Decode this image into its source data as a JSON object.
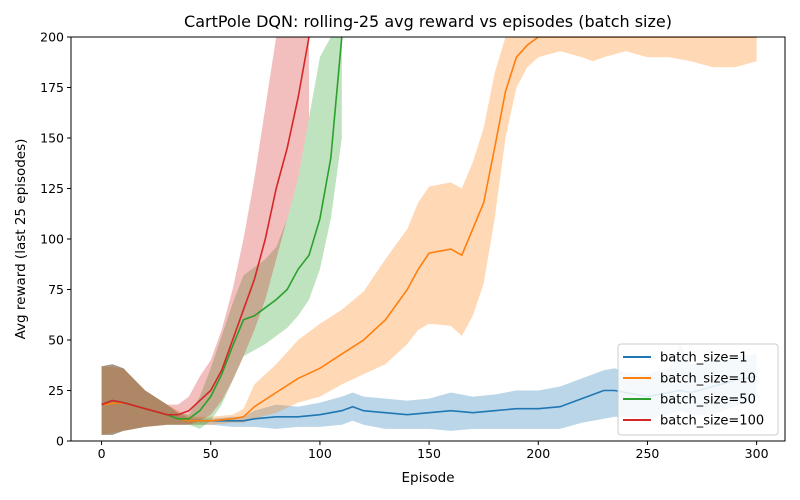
{
  "chart_data": {
    "type": "line",
    "title": "CartPole DQN: rolling-25 avg reward vs episodes (batch size)",
    "xlabel": "Episode",
    "ylabel": "Avg reward (last 25 episodes)",
    "xlim": [
      -14,
      313
    ],
    "ylim": [
      0,
      200
    ],
    "xticks": [
      0,
      50,
      100,
      150,
      200,
      250,
      300
    ],
    "yticks": [
      0,
      25,
      50,
      75,
      100,
      125,
      150,
      175,
      200
    ],
    "legend_position": "lower-right",
    "grid": false,
    "series": [
      {
        "name": "batch_size=1",
        "color": "#1f77b4",
        "x": [
          0,
          5,
          10,
          20,
          30,
          35,
          40,
          50,
          60,
          65,
          70,
          80,
          90,
          100,
          110,
          115,
          120,
          130,
          140,
          150,
          160,
          170,
          180,
          190,
          200,
          210,
          220,
          230,
          235,
          240,
          250,
          260,
          265,
          270,
          280,
          290,
          300
        ],
        "y": [
          18,
          20,
          19,
          16,
          13,
          11,
          10,
          10,
          10,
          10,
          11,
          12,
          12,
          13,
          15,
          17,
          15,
          14,
          13,
          14,
          15,
          14,
          15,
          16,
          16,
          17,
          21,
          25,
          25,
          24,
          22,
          24,
          25,
          24,
          27,
          30,
          32
        ],
        "lower": [
          3,
          3,
          5,
          7,
          8,
          8,
          8,
          8,
          7,
          7,
          7,
          6,
          7,
          7,
          8,
          10,
          8,
          6,
          6,
          6,
          5,
          6,
          6,
          6,
          6,
          6,
          9,
          11,
          12,
          12,
          11,
          13,
          15,
          13,
          13,
          17,
          20
        ],
        "upper": [
          37,
          38,
          36,
          25,
          18,
          14,
          11,
          11,
          12,
          12,
          15,
          18,
          17,
          19,
          22,
          24,
          22,
          21,
          20,
          21,
          24,
          22,
          23,
          25,
          25,
          27,
          31,
          35,
          36,
          34,
          33,
          36,
          48,
          38,
          40,
          42,
          43
        ]
      },
      {
        "name": "batch_size=10",
        "color": "#ff7f0e",
        "x": [
          0,
          10,
          20,
          30,
          35,
          40,
          50,
          60,
          65,
          70,
          80,
          90,
          100,
          110,
          120,
          130,
          140,
          145,
          150,
          160,
          165,
          170,
          175,
          180,
          185,
          190,
          195,
          200,
          210,
          220,
          225,
          230,
          240,
          250,
          260,
          270,
          280,
          290,
          300
        ],
        "y": [
          18,
          19,
          16,
          13,
          11,
          10,
          10,
          11,
          12,
          17,
          24,
          31,
          36,
          43,
          50,
          60,
          75,
          85,
          93,
          95,
          92,
          105,
          118,
          145,
          173,
          190,
          196,
          200,
          200,
          200,
          200,
          200,
          200,
          200,
          200,
          200,
          200,
          200,
          200
        ],
        "lower": [
          3,
          5,
          7,
          8,
          8,
          8,
          8,
          9,
          9,
          11,
          14,
          19,
          22,
          28,
          33,
          38,
          48,
          55,
          58,
          57,
          52,
          62,
          78,
          110,
          150,
          175,
          185,
          190,
          193,
          190,
          188,
          190,
          193,
          190,
          190,
          188,
          185,
          185,
          188
        ],
        "upper": [
          37,
          36,
          25,
          18,
          15,
          12,
          12,
          13,
          16,
          28,
          38,
          50,
          58,
          65,
          74,
          90,
          105,
          118,
          126,
          128,
          125,
          138,
          155,
          182,
          200,
          200,
          200,
          200,
          200,
          200,
          200,
          200,
          200,
          200,
          200,
          200,
          200,
          200,
          200
        ]
      },
      {
        "name": "batch_size=50",
        "color": "#2ca02c",
        "x": [
          0,
          5,
          10,
          20,
          30,
          35,
          40,
          45,
          50,
          55,
          60,
          65,
          70,
          75,
          80,
          85,
          90,
          95,
          100,
          105,
          110
        ],
        "y": [
          18,
          20,
          19,
          16,
          13,
          11,
          11,
          15,
          22,
          33,
          47,
          60,
          62,
          66,
          70,
          75,
          85,
          92,
          110,
          140,
          200
        ],
        "lower": [
          3,
          3,
          5,
          7,
          8,
          8,
          8,
          6,
          10,
          18,
          30,
          42,
          45,
          48,
          52,
          56,
          62,
          70,
          85,
          110,
          150
        ],
        "upper": [
          37,
          38,
          36,
          25,
          18,
          14,
          13,
          22,
          36,
          52,
          68,
          82,
          86,
          90,
          96,
          110,
          130,
          160,
          190,
          200,
          200
        ]
      },
      {
        "name": "batch_size=100",
        "color": "#d62728",
        "x": [
          0,
          5,
          10,
          20,
          30,
          35,
          40,
          45,
          50,
          55,
          60,
          65,
          70,
          75,
          80,
          85,
          90,
          95
        ],
        "y": [
          18,
          20,
          19,
          16,
          13,
          13,
          15,
          20,
          25,
          35,
          50,
          65,
          80,
          100,
          125,
          145,
          170,
          200
        ],
        "lower": [
          3,
          3,
          5,
          7,
          8,
          8,
          8,
          10,
          13,
          20,
          30,
          42,
          55,
          70,
          90,
          110,
          130,
          160
        ],
        "upper": [
          37,
          38,
          36,
          25,
          18,
          18,
          22,
          32,
          40,
          55,
          75,
          100,
          130,
          165,
          200,
          200,
          200,
          200
        ]
      }
    ]
  }
}
